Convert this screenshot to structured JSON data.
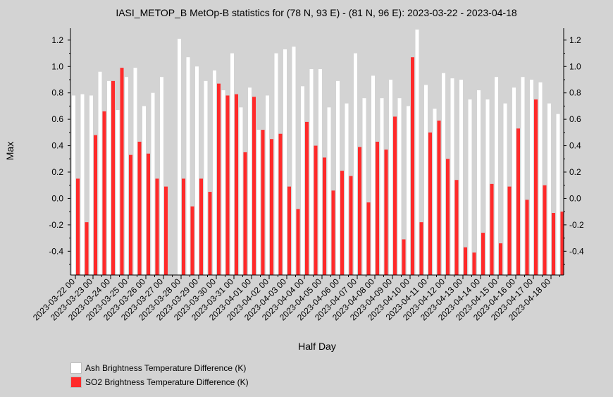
{
  "chart_data": {
    "type": "bar",
    "title": "IASI_METOP_B MetOp-B statistics for (78 N, 93 E) - (81 N, 96 E): 2023-03-22 - 2023-04-18",
    "xlabel": "Half Day",
    "ylabel": "Max",
    "ylim": [
      -0.58,
      1.29
    ],
    "yticks": [
      -0.4,
      -0.2,
      0.0,
      0.2,
      0.4,
      0.6,
      0.8,
      1.0,
      1.2
    ],
    "ytick_labels": [
      "-0.4",
      "-0.2",
      "0.0",
      "0.2",
      "0.4",
      "0.6",
      "0.8",
      "1.0",
      "1.2"
    ],
    "x_tick_labels": [
      "2023-03-22 00",
      "2023-03-23 00",
      "2023-03-24 00",
      "2023-03-25 00",
      "2023-03-26 00",
      "2023-03-27 00",
      "2023-03-28 00",
      "2023-03-29 00",
      "2023-03-30 00",
      "2023-03-31 00",
      "2023-04-01 00",
      "2023-04-02 00",
      "2023-04-03 00",
      "2023-04-04 00",
      "2023-04-05 00",
      "2023-04-06 00",
      "2023-04-07 00",
      "2023-04-08 00",
      "2023-04-09 00",
      "2023-04-10 00",
      "2023-04-11 00",
      "2023-04-12 00",
      "2023-04-13 00",
      "2023-04-14 00",
      "2023-04-15 00",
      "2023-04-16 00",
      "2023-04-17 00",
      "2023-04-18 00"
    ],
    "series": [
      {
        "name": "Ash Brightness Temperature Difference (K)",
        "color": "#ffffff",
        "values": [
          0.78,
          0.79,
          0.78,
          0.96,
          0.89,
          0.67,
          0.92,
          0.99,
          0.7,
          0.8,
          0.92,
          null,
          1.21,
          1.07,
          1.0,
          0.89,
          0.97,
          0.82,
          1.1,
          0.69,
          0.84,
          0.52,
          0.78,
          1.1,
          1.13,
          1.15,
          0.85,
          0.98,
          0.98,
          0.69,
          0.89,
          0.72,
          1.1,
          0.76,
          0.93,
          0.76,
          0.9,
          0.76,
          0.7,
          1.28,
          0.86,
          0.68,
          0.95,
          0.91,
          0.9,
          0.75,
          0.82,
          0.75,
          0.92,
          0.72,
          0.84,
          0.92,
          0.9,
          0.88,
          0.72,
          0.64
        ]
      },
      {
        "name": "SO2 Brightness Temperature Difference (K)",
        "color": "#ff2a2a",
        "values": [
          0.15,
          -0.18,
          0.48,
          0.66,
          0.89,
          0.99,
          0.33,
          0.43,
          0.34,
          0.15,
          0.09,
          null,
          0.15,
          -0.06,
          0.15,
          0.05,
          0.87,
          0.78,
          0.79,
          0.35,
          0.77,
          0.52,
          0.45,
          0.49,
          0.09,
          -0.08,
          0.58,
          0.4,
          0.31,
          0.06,
          0.21,
          0.17,
          0.39,
          -0.03,
          0.43,
          0.37,
          0.62,
          -0.31,
          1.07,
          -0.18,
          0.5,
          0.59,
          0.3,
          0.14,
          -0.37,
          -0.41,
          -0.26,
          0.11,
          -0.34,
          0.09,
          0.53,
          -0.01,
          0.75,
          0.1,
          -0.11,
          -0.1
        ]
      }
    ],
    "legend_placement": "bottom-left",
    "grid": false
  }
}
